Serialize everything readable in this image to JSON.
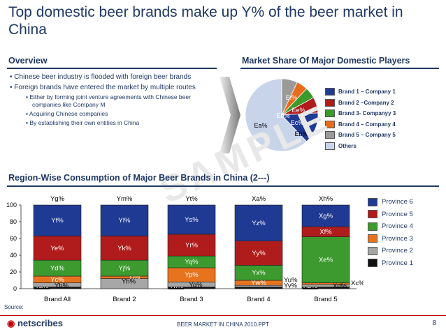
{
  "title": "Top domestic beer brands make up Y% of the beer market in China",
  "overview": {
    "heading": "Overview",
    "bullets": [
      "Chinese beer industry is flooded with foreign beer brands",
      "Foreign brands have entered the market by multiple routes"
    ],
    "sub_bullets": [
      "Either by forming joint venture agreements with Chinese beer companies like Company M",
      "Acquiring Chinese companies",
      "By establishing their own entities in China"
    ]
  },
  "market_share": {
    "heading": "Market Share Of Major Domestic Players",
    "slice_labels": [
      "Ea%",
      "Ef%",
      "Ee%",
      "Ed%",
      "Ec%",
      "Eb%"
    ],
    "legend": [
      {
        "label": "Brand 1 – Company 1",
        "color": "#1f3a93"
      },
      {
        "label": "Brand 2 –Company 2",
        "color": "#b01c1c"
      },
      {
        "label": "Brand 3- Companyy 3",
        "color": "#3a9a2a"
      },
      {
        "label": "Brand 4 – Company 4",
        "color": "#e86c1c"
      },
      {
        "label": "Brand 5 – Company 5",
        "color": "#9a9a9a"
      },
      {
        "label": "Others",
        "color": "#c8d4ea"
      }
    ]
  },
  "region": {
    "heading": "Region-Wise Consumption of Major Beer Brands in China (2---)"
  },
  "chart_data": {
    "type": "bar",
    "stacked": true,
    "categories": [
      "Brand All",
      "Brand 2",
      "Brand 3",
      "Brand 4",
      "Brand 5"
    ],
    "top_labels": [
      "Yg%",
      "Ym%",
      "Yt%",
      "Xa%",
      "Xh%"
    ],
    "ylim": [
      0,
      100
    ],
    "yticks": [
      0,
      20,
      40,
      60,
      80,
      100
    ],
    "series": [
      {
        "name": "Province 1",
        "color": "#111111",
        "values": [
          2,
          0,
          2,
          2,
          2
        ],
        "labels": [
          "Ya%",
          "",
          "Yn%",
          "",
          "Xb%"
        ]
      },
      {
        "name": "Province 2",
        "color": "#a6a6a6",
        "values": [
          5,
          12,
          6,
          2,
          3
        ],
        "labels": [
          "Yb%",
          "Yh%",
          "Yo%",
          "Yv%",
          "Xc%"
        ]
      },
      {
        "name": "Province 3",
        "color": "#e8731e",
        "values": [
          8,
          3,
          17,
          6,
          2
        ],
        "labels": [
          "Yc%",
          "Yi%",
          "Yp%",
          "Yw%",
          "Xd%"
        ]
      },
      {
        "name": "Province 4",
        "color": "#3c9a2e",
        "values": [
          19,
          19,
          14,
          18,
          55
        ],
        "labels": [
          "Yd%",
          "Yj%",
          "Yq%",
          "Yx%",
          "Xe%"
        ]
      },
      {
        "name": "Province 5",
        "color": "#b01c1c",
        "values": [
          29,
          29,
          26,
          29,
          12
        ],
        "labels": [
          "Ye%",
          "Yk%",
          "Yr%",
          "Yy%",
          "Xf%"
        ]
      },
      {
        "name": "Province 6",
        "color": "#1f3a93",
        "values": [
          37,
          37,
          35,
          43,
          26
        ],
        "labels": [
          "Yf%",
          "Yl%",
          "Ys%",
          "Yz%",
          "Xg%"
        ]
      }
    ],
    "outside_labels": [
      "Yu%"
    ]
  },
  "source_label": "Source:",
  "footer": {
    "center": "BEER MARKET IN CHINA 2010.PPT",
    "page": "8",
    "logo": "netscribes"
  },
  "watermark": "SAMPLE"
}
